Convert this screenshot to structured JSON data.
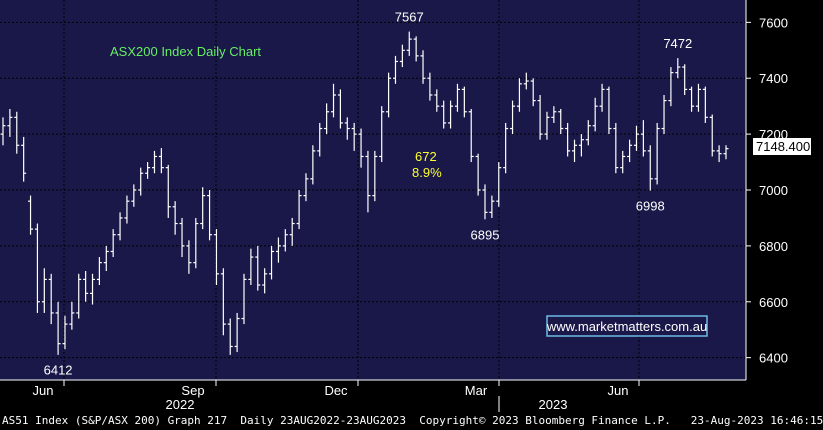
{
  "colors": {
    "plot_bg": "#191848",
    "axis_bg": "#000000",
    "grid": "#000000",
    "price": "#ffffff",
    "title": "#66ee66",
    "highlight": "#ffff33",
    "link_border": "#6fb9e6",
    "last_label_bg": "#ffffff"
  },
  "chart_data": {
    "type": "bar",
    "title": "ASX200 Index Daily Chart",
    "ylim": [
      6320,
      7680
    ],
    "y_ticks": [
      "7600",
      "7400",
      "7200",
      "7000",
      "6800",
      "6600",
      "6400"
    ],
    "x_ticks": [
      "Jun",
      "Sep",
      "Dec",
      "Mar",
      "Jun"
    ],
    "x_years": [
      "2022",
      "2023"
    ],
    "last_value_label": "7148.400",
    "annotations": [
      {
        "text": "7567",
        "value": 7567
      },
      {
        "text": "7472",
        "value": 7472
      },
      {
        "text": "6412",
        "value": 6412
      },
      {
        "text": "6895",
        "value": 6895
      },
      {
        "text": "6998",
        "value": 6998
      }
    ],
    "move_labels": [
      "672",
      "8.9%"
    ],
    "watermark": "www.marketmatters.com.au",
    "series": [
      {
        "type": "ohlc-bars",
        "values": [
          [
            7200,
            7260,
            7160,
            7230
          ],
          [
            7230,
            7290,
            7190,
            7260
          ],
          [
            7260,
            7280,
            7130,
            7160
          ],
          [
            7160,
            7190,
            7030,
            7060
          ],
          [
            6960,
            6980,
            6840,
            6860
          ],
          [
            6860,
            6880,
            6560,
            6600
          ],
          [
            6600,
            6720,
            6560,
            6680
          ],
          [
            6680,
            6700,
            6520,
            6560
          ],
          [
            6560,
            6600,
            6410,
            6450
          ],
          [
            6450,
            6550,
            6430,
            6520
          ],
          [
            6520,
            6600,
            6500,
            6560
          ],
          [
            6560,
            6700,
            6540,
            6680
          ],
          [
            6680,
            6710,
            6600,
            6630
          ],
          [
            6630,
            6700,
            6590,
            6680
          ],
          [
            6680,
            6760,
            6660,
            6740
          ],
          [
            6740,
            6800,
            6710,
            6780
          ],
          [
            6780,
            6860,
            6760,
            6840
          ],
          [
            6840,
            6920,
            6820,
            6900
          ],
          [
            6900,
            6980,
            6880,
            6960
          ],
          [
            6960,
            7020,
            6940,
            7000
          ],
          [
            7000,
            7080,
            6980,
            7060
          ],
          [
            7060,
            7100,
            7040,
            7080
          ],
          [
            7080,
            7140,
            7060,
            7120
          ],
          [
            7120,
            7150,
            7060,
            7080
          ],
          [
            7080,
            7090,
            6900,
            6940
          ],
          [
            6940,
            6960,
            6840,
            6880
          ],
          [
            6880,
            6900,
            6760,
            6800
          ],
          [
            6800,
            6820,
            6700,
            6740
          ],
          [
            6740,
            6900,
            6720,
            6880
          ],
          [
            6880,
            7010,
            6860,
            6980
          ],
          [
            6980,
            7000,
            6820,
            6840
          ],
          [
            6840,
            6860,
            6660,
            6700
          ],
          [
            6700,
            6720,
            6480,
            6520
          ],
          [
            6520,
            6540,
            6410,
            6440
          ],
          [
            6440,
            6560,
            6420,
            6540
          ],
          [
            6540,
            6700,
            6520,
            6680
          ],
          [
            6680,
            6790,
            6660,
            6760
          ],
          [
            6760,
            6800,
            6640,
            6660
          ],
          [
            6660,
            6720,
            6630,
            6700
          ],
          [
            6700,
            6800,
            6680,
            6780
          ],
          [
            6780,
            6830,
            6740,
            6800
          ],
          [
            6800,
            6860,
            6780,
            6840
          ],
          [
            6840,
            6900,
            6800,
            6880
          ],
          [
            6880,
            7000,
            6860,
            6980
          ],
          [
            6980,
            7060,
            6960,
            7040
          ],
          [
            7040,
            7160,
            7020,
            7140
          ],
          [
            7140,
            7240,
            7120,
            7220
          ],
          [
            7220,
            7310,
            7200,
            7280
          ],
          [
            7280,
            7380,
            7260,
            7340
          ],
          [
            7340,
            7360,
            7220,
            7240
          ],
          [
            7240,
            7260,
            7180,
            7220
          ],
          [
            7220,
            7240,
            7140,
            7200
          ],
          [
            7200,
            7220,
            7080,
            7120
          ],
          [
            7120,
            7140,
            6920,
            6980
          ],
          [
            6980,
            7140,
            6960,
            7120
          ],
          [
            7120,
            7300,
            7100,
            7280
          ],
          [
            7280,
            7420,
            7260,
            7400
          ],
          [
            7400,
            7480,
            7380,
            7460
          ],
          [
            7460,
            7520,
            7440,
            7500
          ],
          [
            7500,
            7567,
            7480,
            7540
          ],
          [
            7540,
            7550,
            7460,
            7480
          ],
          [
            7480,
            7500,
            7380,
            7400
          ],
          [
            7400,
            7420,
            7320,
            7340
          ],
          [
            7340,
            7360,
            7280,
            7300
          ],
          [
            7300,
            7320,
            7220,
            7240
          ],
          [
            7240,
            7320,
            7220,
            7300
          ],
          [
            7300,
            7380,
            7280,
            7360
          ],
          [
            7360,
            7370,
            7260,
            7280
          ],
          [
            7280,
            7290,
            7100,
            7120
          ],
          [
            7120,
            7130,
            6980,
            7000
          ],
          [
            7000,
            7020,
            6895,
            6920
          ],
          [
            6920,
            6980,
            6900,
            6960
          ],
          [
            6960,
            7100,
            6940,
            7080
          ],
          [
            7080,
            7240,
            7060,
            7220
          ],
          [
            7220,
            7320,
            7200,
            7300
          ],
          [
            7300,
            7400,
            7280,
            7380
          ],
          [
            7380,
            7420,
            7360,
            7390
          ],
          [
            7390,
            7400,
            7300,
            7320
          ],
          [
            7320,
            7340,
            7180,
            7200
          ],
          [
            7200,
            7280,
            7180,
            7260
          ],
          [
            7260,
            7300,
            7240,
            7280
          ],
          [
            7280,
            7290,
            7200,
            7220
          ],
          [
            7220,
            7240,
            7120,
            7140
          ],
          [
            7140,
            7180,
            7100,
            7160
          ],
          [
            7160,
            7200,
            7120,
            7180
          ],
          [
            7180,
            7250,
            7160,
            7230
          ],
          [
            7230,
            7330,
            7210,
            7300
          ],
          [
            7300,
            7380,
            7280,
            7360
          ],
          [
            7360,
            7370,
            7200,
            7220
          ],
          [
            7220,
            7240,
            7060,
            7080
          ],
          [
            7080,
            7140,
            7060,
            7120
          ],
          [
            7120,
            7180,
            7100,
            7160
          ],
          [
            7160,
            7230,
            7140,
            7200
          ],
          [
            7200,
            7250,
            7120,
            7140
          ],
          [
            7140,
            7160,
            6998,
            7040
          ],
          [
            7040,
            7240,
            7020,
            7220
          ],
          [
            7220,
            7340,
            7200,
            7320
          ],
          [
            7320,
            7440,
            7300,
            7420
          ],
          [
            7420,
            7472,
            7400,
            7440
          ],
          [
            7440,
            7450,
            7340,
            7360
          ],
          [
            7360,
            7370,
            7280,
            7300
          ],
          [
            7300,
            7380,
            7280,
            7360
          ],
          [
            7360,
            7370,
            7240,
            7260
          ],
          [
            7260,
            7270,
            7120,
            7140
          ],
          [
            7140,
            7160,
            7100,
            7130
          ],
          [
            7130,
            7160,
            7110,
            7148
          ]
        ]
      }
    ]
  },
  "footer": {
    "left": "AS51 Index (S&P/ASX 200) Graph 217",
    "middle": "Daily 23AUG2022-23AUG2023",
    "right": "Copyright© 2023 Bloomberg Finance L.P.   23-Aug-2023 16:46:15"
  }
}
